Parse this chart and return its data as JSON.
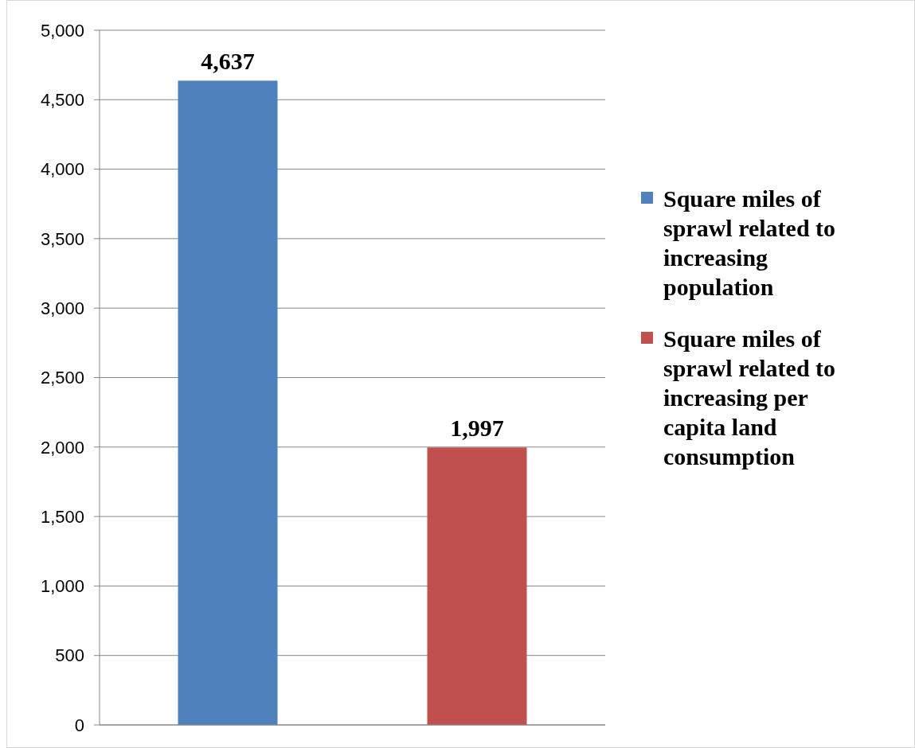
{
  "chart_data": {
    "type": "bar",
    "categories": [
      null
    ],
    "series": [
      {
        "name": "Square miles of sprawl related to increasing population",
        "color": "#4f81bd",
        "values": [
          4637
        ],
        "value_labels": [
          "4,637"
        ]
      },
      {
        "name": "Square miles of sprawl related to increasing per capita land consumption",
        "color": "#c0504d",
        "values": [
          1997
        ],
        "value_labels": [
          "1,997"
        ]
      }
    ],
    "ylim": [
      0,
      5000
    ],
    "yticks": [
      {
        "value": 0,
        "label": "0"
      },
      {
        "value": 500,
        "label": "500"
      },
      {
        "value": 1000,
        "label": "1,000"
      },
      {
        "value": 1500,
        "label": "1,500"
      },
      {
        "value": 2000,
        "label": "2,000"
      },
      {
        "value": 2500,
        "label": "2,500"
      },
      {
        "value": 3000,
        "label": "3,000"
      },
      {
        "value": 3500,
        "label": "3,500"
      },
      {
        "value": 4000,
        "label": "4,000"
      },
      {
        "value": 4500,
        "label": "4,500"
      },
      {
        "value": 5000,
        "label": "5,000"
      }
    ],
    "grid": "y",
    "legend": "right"
  }
}
